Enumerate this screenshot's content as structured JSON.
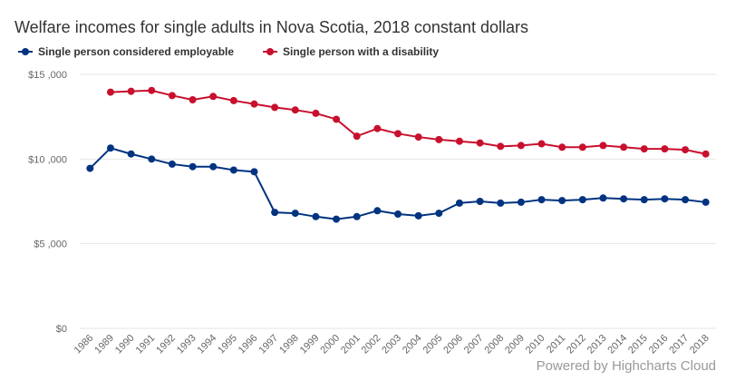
{
  "chart_data": {
    "type": "line",
    "title": "Welfare incomes for single adults in Nova Scotia, 2018 constant dollars",
    "xlabel": "",
    "ylabel": "",
    "categories": [
      "1986",
      "1989",
      "1990",
      "1991",
      "1992",
      "1993",
      "1994",
      "1995",
      "1996",
      "1997",
      "1998",
      "1999",
      "2000",
      "2001",
      "2002",
      "2003",
      "2004",
      "2005",
      "2006",
      "2007",
      "2008",
      "2009",
      "2010",
      "2011",
      "2012",
      "2013",
      "2014",
      "2015",
      "2016",
      "2017",
      "2018"
    ],
    "series": [
      {
        "name": "Single person considered employable",
        "color": "#003380",
        "values": [
          9450,
          10650,
          10300,
          10000,
          9700,
          9550,
          9550,
          9350,
          9250,
          6850,
          6800,
          6600,
          6450,
          6600,
          6950,
          6750,
          6650,
          6800,
          7400,
          7500,
          7400,
          7450,
          7600,
          7550,
          7600,
          7700,
          7650,
          7600,
          7650,
          7600,
          7450
        ]
      },
      {
        "name": "Single person with a disability",
        "color": "#c8102e",
        "values": [
          null,
          13950,
          14000,
          14050,
          13750,
          13500,
          13700,
          13450,
          13250,
          13050,
          12900,
          12700,
          12350,
          11350,
          11800,
          11500,
          11300,
          11150,
          11050,
          10950,
          10750,
          10800,
          10900,
          10700,
          10700,
          10800,
          10700,
          10600,
          10600,
          10550,
          10300
        ]
      }
    ],
    "ylim": [
      0,
      15000
    ],
    "yticks": [
      0,
      5000,
      10000,
      15000
    ],
    "ytick_labels": [
      "$0",
      "$5 ,000",
      "$10 ,000",
      "$15 ,000"
    ],
    "grid": true,
    "legend": "top-left",
    "credits": "Powered by Highcharts Cloud"
  }
}
